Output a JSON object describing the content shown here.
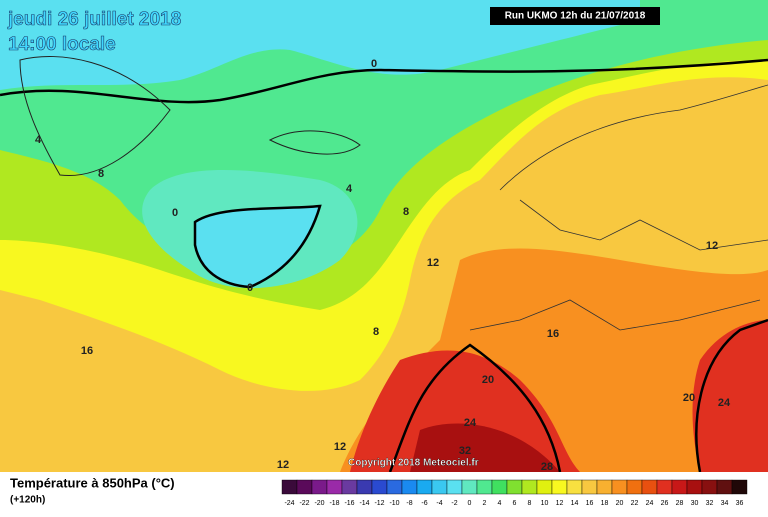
{
  "header": {
    "title": "jeudi 26 juillet 2018",
    "subtitle": "14:00 locale",
    "run": "Run UKMO 12h du 21/07/2018"
  },
  "map": {
    "contour_labels": [
      0,
      0,
      0,
      4,
      4,
      8,
      8,
      8,
      12,
      12,
      12,
      12,
      16,
      16,
      20,
      20,
      24,
      24,
      32,
      28
    ],
    "copyright": "Copyright 2018 Meteociel.fr"
  },
  "legend": {
    "title": "Température à 850hPa (°C)",
    "lead_time": "(+120h)",
    "ticks": [
      -24,
      -22,
      -20,
      -18,
      -16,
      -14,
      -12,
      -10,
      -8,
      -6,
      -4,
      -2,
      0,
      2,
      4,
      6,
      8,
      10,
      12,
      14,
      16,
      18,
      20,
      22,
      24,
      26,
      28,
      30,
      32,
      34,
      36
    ],
    "colors": [
      "#3a0a3a",
      "#5a0a5a",
      "#7a1a8a",
      "#9a2aa8",
      "#6a3aa0",
      "#3a3ab0",
      "#2a4ad0",
      "#2a6ae0",
      "#1a8af0",
      "#1aaaf0",
      "#3ac8f0",
      "#5ae0f0",
      "#60e8c0",
      "#50e890",
      "#40e060",
      "#80e030",
      "#b0e820",
      "#e0f010",
      "#f8f820",
      "#f8e040",
      "#f8c840",
      "#f8b030",
      "#f89020",
      "#f07010",
      "#e85010",
      "#e03020",
      "#c81818",
      "#a81010",
      "#881010",
      "#601010",
      "#200808"
    ]
  }
}
